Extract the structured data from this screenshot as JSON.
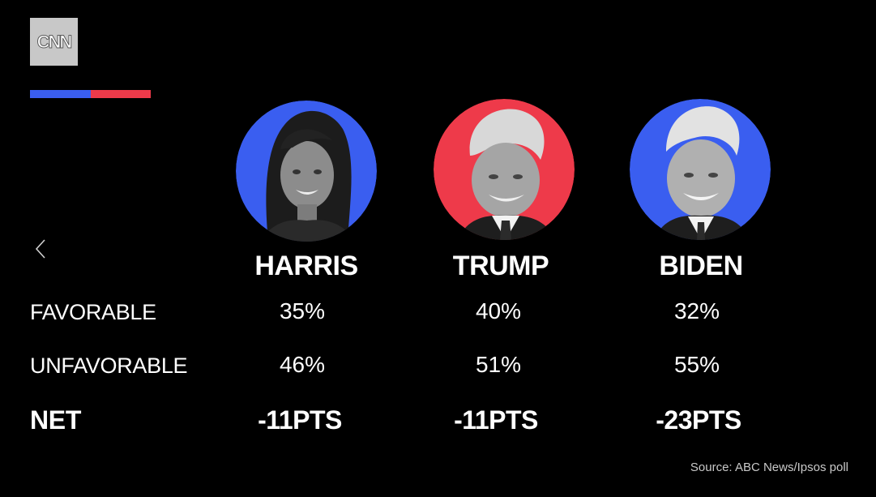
{
  "brand": {
    "logo_text": "CNN",
    "stripe_blue": "#3a5ef0",
    "stripe_red": "#ee3a4a"
  },
  "navigation": {
    "back_icon": "chevron-left-icon"
  },
  "candidates": [
    {
      "name": "HARRIS",
      "party_color": "#3a5ef0",
      "favorable": "35%",
      "unfavorable": "46%",
      "net": "-11PTS"
    },
    {
      "name": "TRUMP",
      "party_color": "#ee3a4a",
      "favorable": "40%",
      "unfavorable": "51%",
      "net": "-11PTS"
    },
    {
      "name": "BIDEN",
      "party_color": "#3a5ef0",
      "favorable": "32%",
      "unfavorable": "55%",
      "net": "-23PTS"
    }
  ],
  "rows": {
    "favorable": "FAVORABLE",
    "unfavorable": "UNFAVORABLE",
    "net": "NET"
  },
  "source": "Source: ABC News/Ipsos poll"
}
